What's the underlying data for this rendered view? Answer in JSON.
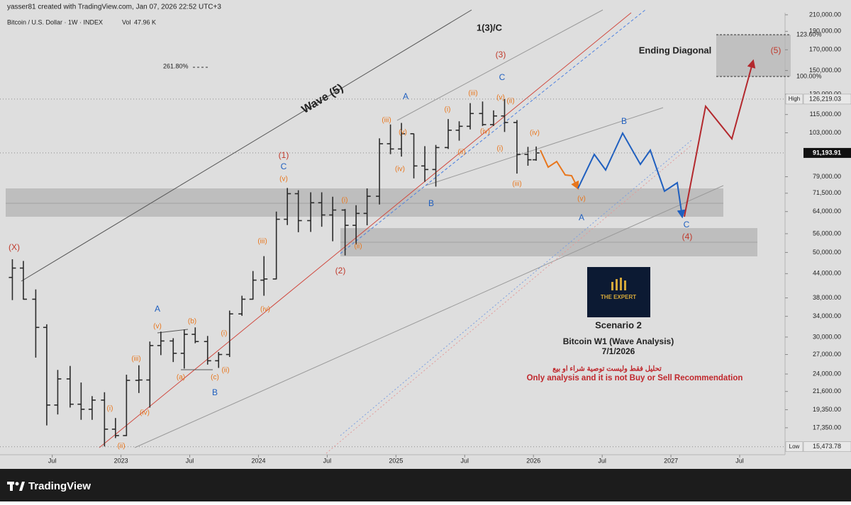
{
  "header": {
    "author_line": "yasser81 created with TradingView.com, Jan 07, 2026 22:52 UTC+3",
    "symbol": "Bitcoin / U.S. Dollar · 1W · INDEX",
    "volume_label": "Vol",
    "volume": "47.96 K"
  },
  "chart_data": {
    "type": "ohlc",
    "log_scale": true,
    "grid": false,
    "bar_color": "#2b2b2b",
    "x": [
      2022.21,
      2022.29,
      2022.38,
      2022.46,
      2022.54,
      2022.63,
      2022.71,
      2022.79,
      2022.88,
      2022.96,
      2023.04,
      2023.13,
      2023.21,
      2023.29,
      2023.38,
      2023.46,
      2023.54,
      2023.63,
      2023.71,
      2023.79,
      2023.88,
      2023.96,
      2024.04,
      2024.13,
      2024.21,
      2024.29,
      2024.38,
      2024.46,
      2024.54,
      2024.63,
      2024.71,
      2024.79,
      2024.88,
      2024.96,
      2025.04,
      2025.13,
      2025.21,
      2025.29,
      2025.38,
      2025.46,
      2025.54,
      2025.63,
      2025.71,
      2025.79,
      2025.88,
      2025.96,
      2026.02
    ],
    "open": [
      43000,
      45500,
      37700,
      31800,
      19900,
      23300,
      20000,
      19400,
      20500,
      17200,
      16550,
      23100,
      23150,
      28500,
      29300,
      27200,
      30500,
      29200,
      26000,
      27000,
      34500,
      37700,
      42300,
      42600,
      61100,
      71300,
      60600,
      67500,
      62700,
      64600,
      58900,
      63300,
      70200,
      96400,
      93400,
      102400,
      84300,
      82500,
      94200,
      104600,
      107100,
      115700,
      108200,
      114000,
      109600,
      90400,
      87500
    ],
    "high": [
      48000,
      47500,
      40000,
      32400,
      24600,
      25200,
      22800,
      21000,
      21500,
      18400,
      23900,
      25300,
      29200,
      31000,
      29800,
      31400,
      31800,
      30200,
      27400,
      35200,
      38500,
      44700,
      48900,
      64000,
      73800,
      72800,
      71900,
      71900,
      70000,
      65000,
      66500,
      73600,
      99600,
      108300,
      109300,
      102500,
      95000,
      95700,
      111900,
      110400,
      123200,
      124400,
      117900,
      126200,
      111200,
      94600,
      94800
    ],
    "low": [
      37500,
      37600,
      26500,
      17600,
      18800,
      19600,
      18200,
      18200,
      15500,
      16300,
      16500,
      21400,
      19600,
      26900,
      25800,
      24800,
      28900,
      25400,
      24900,
      26600,
      34100,
      37600,
      38500,
      42500,
      59000,
      56500,
      56600,
      58400,
      53500,
      49100,
      52500,
      58900,
      66800,
      90500,
      89200,
      78200,
      76600,
      74400,
      93400,
      98200,
      105100,
      107300,
      107300,
      103500,
      80500,
      84400,
      87000
    ],
    "close": [
      45500,
      37700,
      31800,
      19900,
      23300,
      20000,
      19400,
      20500,
      17200,
      16550,
      23100,
      23150,
      28500,
      29300,
      27200,
      30500,
      29200,
      26000,
      27000,
      34500,
      37700,
      42300,
      42600,
      61100,
      71300,
      60600,
      67500,
      62700,
      64600,
      58900,
      63300,
      70200,
      96400,
      93400,
      102400,
      84300,
      82500,
      94200,
      104600,
      107100,
      115700,
      108200,
      114000,
      109600,
      90400,
      87500,
      91200
    ],
    "xlim": [
      2022.12,
      2027.83
    ],
    "xticks": [
      {
        "value": 2022.5,
        "label": "Jul"
      },
      2023,
      {
        "value": 2023.5,
        "label": "Jul"
      },
      2024,
      {
        "value": 2024.5,
        "label": "Jul"
      },
      2025,
      {
        "value": 2025.5,
        "label": "Jul"
      },
      2026,
      {
        "value": 2026.5,
        "label": "Jul"
      },
      2027,
      {
        "value": 2027.5,
        "label": "Jul"
      }
    ],
    "ylim": [
      14870,
      220000
    ],
    "yticks": [
      {
        "value": 17350,
        "label": "17,350.00"
      },
      {
        "value": 19350,
        "label": "19,350.00"
      },
      {
        "value": 21600,
        "label": "21,600.00"
      },
      {
        "value": 24000,
        "label": "24,000.00"
      },
      {
        "value": 27000,
        "label": "27,000.00"
      },
      {
        "value": 30000,
        "label": "30,000.00"
      },
      {
        "value": 34000,
        "label": "34,000.00"
      },
      {
        "value": 38000,
        "label": "38,000.00"
      },
      {
        "value": 44000,
        "label": "44,000.00"
      },
      {
        "value": 50000,
        "label": "50,000.00"
      },
      {
        "value": 56000,
        "label": "56,000.00"
      },
      {
        "value": 64000,
        "label": "64,000.00"
      },
      {
        "value": 71500,
        "label": "71,500.00"
      },
      {
        "value": 79000,
        "label": "79,000.00"
      },
      {
        "value": 103000,
        "label": "103,000.00"
      },
      {
        "value": 115000,
        "label": "115,000.00"
      },
      {
        "value": 130000,
        "label": "130,000.00"
      },
      {
        "value": 150000,
        "label": "150,000.00"
      },
      {
        "value": 170000,
        "label": "170,000.00"
      },
      {
        "value": 190000,
        "label": "190,000.00"
      },
      {
        "value": 210000,
        "label": "210,000.00"
      }
    ],
    "markers": [
      {
        "name": "High",
        "price": {
          "value": 126219.03,
          "label": "126,219.03"
        }
      },
      {
        "price": {
          "value": 91193.91,
          "label": "91,193.91"
        }
      },
      {
        "name": "Low",
        "price": {
          "value": 15473.78,
          "label": "15,473.78"
        }
      }
    ],
    "wave_labels": {
      "primary": [
        "(X)",
        "(1)",
        "(2)",
        "(3)",
        "(5)",
        "(4)"
      ],
      "abc": [
        "A",
        "B",
        "C",
        "A",
        "B",
        "C",
        "B",
        "A",
        "C"
      ],
      "minor": [
        "(i)",
        "(ii)",
        "(iii)",
        "(iv)",
        "(v)",
        "(a)",
        "(b)",
        "(c)",
        "(i)",
        "(ii)",
        "(iii)",
        "(iv)",
        "(v)",
        "(i)",
        "(ii)",
        "(iii)",
        "(iv)",
        "(v)",
        "(i)",
        "(ii)",
        "(iii)",
        "(iv)",
        "(v)",
        "(ii)",
        "(i)",
        "(iv)",
        "(iii)",
        "(v)"
      ]
    },
    "colors": {
      "primary": "#c0392b",
      "abc": "#1f5fbf",
      "minor": "#e8761c"
    },
    "annotations": {
      "degree": "1(3)/C",
      "wave": "Wave (5)",
      "pattern": "Ending Diagonal",
      "fib_ext": "261.80%",
      "fib_top": "123.60%",
      "fib_bottom": "100.00%"
    },
    "caption": {
      "scenario": "Scenario 2",
      "title": "Bitcoin W1 (Wave Analysis)",
      "date": "7/1/2026",
      "arabic": "تحليل فقط وليست توصية شراء او بيع",
      "disclaimer": "Only analysis and it is not Buy or Sell Recommendation"
    },
    "logo": "THE EXPERT"
  },
  "footer": {
    "brand": "TradingView"
  }
}
